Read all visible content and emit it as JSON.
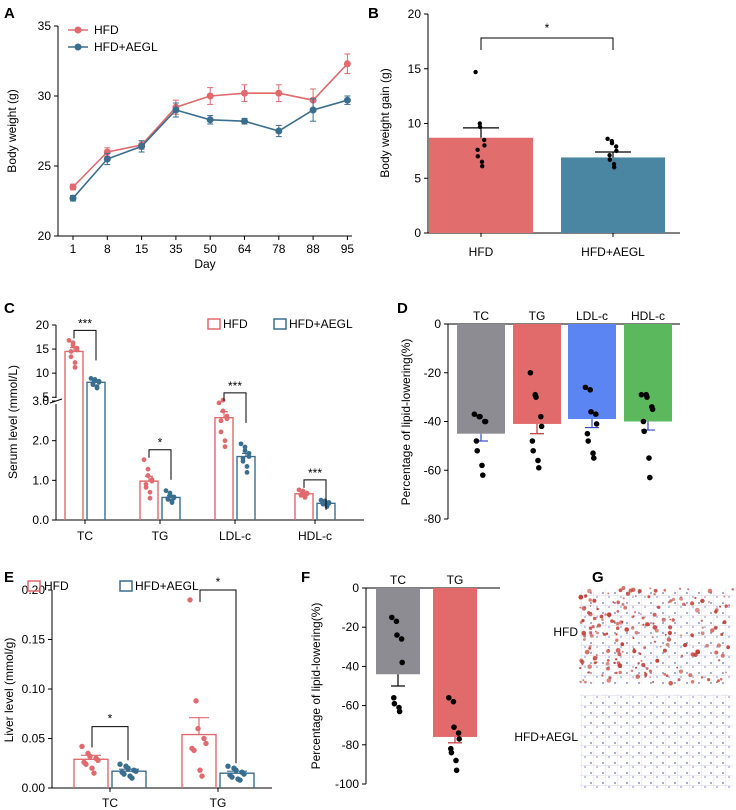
{
  "figure": {
    "panel_letters": [
      "A",
      "B",
      "C",
      "D",
      "E",
      "F",
      "G"
    ]
  },
  "colors": {
    "hfd": "#e06a6e",
    "aegl": "#3a6e8e",
    "bar_b_hfd": "#e16d6d",
    "bar_b_aegl": "#4a85a2",
    "gray": "#8c8c92",
    "red": "#e16a6a",
    "blue": "#5a85f2",
    "green": "#5cb85c",
    "dot": "#000000",
    "tissue_red": "#c0372e",
    "tissue_blue": "#8c92c8"
  },
  "chart_data": [
    {
      "id": "A",
      "type": "line",
      "title": "",
      "xlabel": "Day",
      "ylabel": "Body weight (g)",
      "categories": [
        "1",
        "8",
        "15",
        "35",
        "50",
        "64",
        "78",
        "88",
        "95"
      ],
      "ylim": [
        20,
        35
      ],
      "yticks": [
        "20",
        "25",
        "30",
        "35"
      ],
      "legend": [
        "HFD",
        "HFD+AEGL"
      ],
      "series": [
        {
          "name": "HFD",
          "values": [
            23.5,
            26.0,
            26.5,
            29.2,
            30.0,
            30.2,
            30.2,
            29.7,
            32.3
          ],
          "errors": [
            0.2,
            0.3,
            0.3,
            0.5,
            0.6,
            0.6,
            0.6,
            0.8,
            0.7
          ]
        },
        {
          "name": "HFD+AEGL",
          "values": [
            22.7,
            25.5,
            26.4,
            29.0,
            28.3,
            28.2,
            27.5,
            29.0,
            29.7
          ],
          "errors": [
            0.2,
            0.4,
            0.4,
            0.5,
            0.3,
            0.2,
            0.4,
            0.8,
            0.3
          ]
        }
      ]
    },
    {
      "id": "B",
      "type": "bar",
      "xlabel": "",
      "ylabel": "Body weight gain (g)",
      "categories": [
        "HFD",
        "HFD+AEGL"
      ],
      "values": [
        8.7,
        6.9
      ],
      "errors": [
        0.9,
        0.5
      ],
      "ylim": [
        0,
        20
      ],
      "yticks": [
        "0",
        "5",
        "10",
        "15",
        "20"
      ],
      "significance": "*",
      "points": [
        [
          14.7,
          10.0,
          9.7,
          8.5,
          8.0,
          7.6,
          7.0,
          6.5,
          6.1
        ],
        [
          8.6,
          8.4,
          8.2,
          7.9,
          7.5,
          7.1,
          6.7,
          6.3,
          6.0
        ]
      ]
    },
    {
      "id": "C",
      "type": "bar",
      "ylabel": "Serum level (mmol/L)",
      "categories": [
        "TC",
        "TG",
        "LDL-c",
        "HDL-c"
      ],
      "legend": [
        "HFD",
        "HFD+AEGL"
      ],
      "upper_ticks": [
        "5",
        "10",
        "15",
        "20"
      ],
      "lower_ticks": [
        "0.0",
        "1.0",
        "2.0",
        "3.0"
      ],
      "significance": [
        "***",
        "*",
        "***",
        "***"
      ],
      "series": [
        {
          "name": "HFD",
          "values": [
            14.5,
            0.98,
            2.58,
            0.66
          ],
          "errors": [
            0.8,
            0.12,
            0.15,
            0.03
          ]
        },
        {
          "name": "HFD+AEGL",
          "values": [
            8.1,
            0.57,
            1.6,
            0.42
          ],
          "errors": [
            0.4,
            0.05,
            0.08,
            0.02
          ]
        }
      ],
      "points": {
        "HFD": [
          [
            16.8,
            16.3,
            15.8,
            15.2,
            14.8,
            14.5,
            13.4,
            12.2,
            11.2
          ],
          [
            1.52,
            1.28,
            1.12,
            1.02,
            0.98,
            0.9,
            0.82,
            0.7,
            0.55
          ],
          [
            3.82,
            3.02,
            2.75,
            2.62,
            2.55,
            2.5,
            2.22,
            2.0,
            1.85
          ],
          [
            0.76,
            0.73,
            0.7,
            0.68,
            0.66,
            0.64,
            0.62,
            0.6,
            0.57
          ]
        ],
        "HFD+AEGL": [
          [
            8.9,
            8.7,
            8.5,
            8.3,
            8.1,
            7.9,
            7.6,
            7.2,
            6.9
          ],
          [
            0.74,
            0.68,
            0.62,
            0.58,
            0.56,
            0.54,
            0.52,
            0.48,
            0.44
          ],
          [
            1.92,
            1.84,
            1.75,
            1.68,
            1.6,
            1.55,
            1.48,
            1.35,
            1.2
          ],
          [
            0.5,
            0.48,
            0.46,
            0.44,
            0.42,
            0.41,
            0.4,
            0.37,
            0.34
          ]
        ]
      }
    },
    {
      "id": "D",
      "type": "bar",
      "ylabel": "Percentage of lipid-lowering(%)",
      "categories": [
        "TC",
        "TG",
        "LDL-c",
        "HDL-c"
      ],
      "values": [
        -45,
        -41,
        -39,
        -40
      ],
      "errors": [
        3.0,
        4.0,
        3.5,
        3.5
      ],
      "ylim": [
        -80,
        0
      ],
      "yticks": [
        "-80",
        "-60",
        "-40",
        "-20",
        "0"
      ],
      "points": [
        [
          -37,
          -38,
          -38,
          -40,
          -40,
          -48,
          -52,
          -58,
          -62
        ],
        [
          -20,
          -29,
          -30,
          -38,
          -42,
          -48,
          -52,
          -56,
          -59
        ],
        [
          -26,
          -27,
          -36,
          -37,
          -41,
          -45,
          -48,
          -53,
          -55
        ],
        [
          -29,
          -29,
          -30,
          -34,
          -35,
          -40,
          -44,
          -55,
          -63
        ]
      ]
    },
    {
      "id": "E",
      "type": "bar",
      "ylabel": "Liver level (mmol/g)",
      "categories": [
        "TC",
        "TG"
      ],
      "legend": [
        "HFD",
        "HFD+AEGL"
      ],
      "ylim": [
        0,
        0.2
      ],
      "yticks": [
        "0.00",
        "0.05",
        "0.10",
        "0.15",
        "0.20"
      ],
      "significance": [
        "*",
        "*"
      ],
      "series": [
        {
          "name": "HFD",
          "values": [
            0.029,
            0.054
          ],
          "errors": [
            0.004,
            0.017
          ]
        },
        {
          "name": "HFD+AEGL",
          "values": [
            0.017,
            0.015
          ],
          "errors": [
            0.002,
            0.002
          ]
        }
      ],
      "points": {
        "HFD": [
          [
            0.042,
            0.035,
            0.032,
            0.03,
            0.028,
            0.026,
            0.024,
            0.02,
            0.015
          ],
          [
            0.19,
            0.088,
            0.06,
            0.05,
            0.045,
            0.04,
            0.038,
            0.018,
            0.012
          ]
        ],
        "HFD+AEGL": [
          [
            0.024,
            0.022,
            0.02,
            0.018,
            0.017,
            0.016,
            0.014,
            0.012,
            0.01
          ],
          [
            0.022,
            0.02,
            0.018,
            0.016,
            0.014,
            0.013,
            0.011,
            0.009,
            0.008
          ]
        ]
      }
    },
    {
      "id": "F",
      "type": "bar",
      "ylabel": "Percentage of lipid-lowering(%)",
      "categories": [
        "TC",
        "TG"
      ],
      "values": [
        -44,
        -76
      ],
      "errors": [
        6,
        3
      ],
      "ylim": [
        -100,
        0
      ],
      "yticks": [
        "-100",
        "-80",
        "-60",
        "-40",
        "-20",
        "0"
      ],
      "points": [
        [
          -15,
          -17,
          -24,
          -26,
          -38,
          -56,
          -59,
          -61,
          -63
        ],
        [
          -56,
          -58,
          -71,
          -74,
          -77,
          -82,
          -84,
          -88,
          -93
        ]
      ]
    }
  ],
  "histology": {
    "labels": [
      "HFD",
      "HFD+AEGL"
    ]
  }
}
